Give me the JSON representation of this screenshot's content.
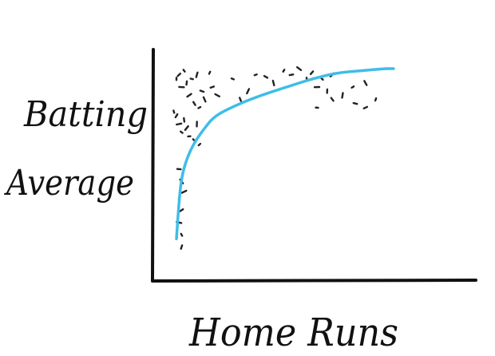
{
  "chart_data": {
    "type": "scatter",
    "title": "",
    "xlabel": "Home Runs",
    "ylabel_lines": [
      "Batting",
      "Average"
    ],
    "ylabel": "Batting Average",
    "axis_color": "#111111",
    "point_color": "#222222",
    "curve_color": "#3fbde8",
    "grid": false,
    "xlim": [
      0,
      100
    ],
    "ylim": [
      0,
      100
    ],
    "points": [
      {
        "x": 5,
        "y": 88
      },
      {
        "x": 6,
        "y": 90
      },
      {
        "x": 7,
        "y": 84
      },
      {
        "x": 8,
        "y": 92
      },
      {
        "x": 9,
        "y": 86
      },
      {
        "x": 10,
        "y": 80
      },
      {
        "x": 11,
        "y": 88
      },
      {
        "x": 12,
        "y": 76
      },
      {
        "x": 13,
        "y": 90
      },
      {
        "x": 14,
        "y": 74
      },
      {
        "x": 15,
        "y": 82
      },
      {
        "x": 16,
        "y": 78
      },
      {
        "x": 18,
        "y": 91
      },
      {
        "x": 19,
        "y": 84
      },
      {
        "x": 21,
        "y": 80
      },
      {
        "x": 4,
        "y": 72
      },
      {
        "x": 5,
        "y": 70
      },
      {
        "x": 6,
        "y": 66
      },
      {
        "x": 7,
        "y": 62
      },
      {
        "x": 8,
        "y": 68
      },
      {
        "x": 9,
        "y": 64
      },
      {
        "x": 10,
        "y": 60
      },
      {
        "x": 12,
        "y": 58
      },
      {
        "x": 13,
        "y": 66
      },
      {
        "x": 14,
        "y": 56
      },
      {
        "x": 6,
        "y": 44
      },
      {
        "x": 7,
        "y": 38
      },
      {
        "x": 6,
        "y": 30
      },
      {
        "x": 7,
        "y": 24
      },
      {
        "x": 6,
        "y": 18
      },
      {
        "x": 7,
        "y": 12
      },
      {
        "x": 7,
        "y": 6
      },
      {
        "x": 8,
        "y": 33
      },
      {
        "x": 27,
        "y": 88
      },
      {
        "x": 30,
        "y": 78
      },
      {
        "x": 33,
        "y": 82
      },
      {
        "x": 36,
        "y": 90
      },
      {
        "x": 40,
        "y": 89
      },
      {
        "x": 43,
        "y": 86
      },
      {
        "x": 47,
        "y": 92
      },
      {
        "x": 50,
        "y": 90
      },
      {
        "x": 53,
        "y": 93
      },
      {
        "x": 56,
        "y": 88
      },
      {
        "x": 58,
        "y": 91
      },
      {
        "x": 60,
        "y": 84
      },
      {
        "x": 62,
        "y": 88
      },
      {
        "x": 64,
        "y": 82
      },
      {
        "x": 66,
        "y": 90
      },
      {
        "x": 60,
        "y": 74
      },
      {
        "x": 66,
        "y": 78
      },
      {
        "x": 70,
        "y": 80
      },
      {
        "x": 74,
        "y": 84
      },
      {
        "x": 75,
        "y": 76
      },
      {
        "x": 79,
        "y": 86
      },
      {
        "x": 83,
        "y": 78
      },
      {
        "x": 79,
        "y": 74
      }
    ],
    "trend_curve": [
      {
        "x": 5,
        "y": 10
      },
      {
        "x": 6,
        "y": 28
      },
      {
        "x": 7,
        "y": 40
      },
      {
        "x": 9,
        "y": 49
      },
      {
        "x": 12,
        "y": 57
      },
      {
        "x": 16,
        "y": 64
      },
      {
        "x": 20,
        "y": 70
      },
      {
        "x": 28,
        "y": 75
      },
      {
        "x": 38,
        "y": 80
      },
      {
        "x": 48,
        "y": 84
      },
      {
        "x": 58,
        "y": 88
      },
      {
        "x": 68,
        "y": 91
      },
      {
        "x": 78,
        "y": 92
      },
      {
        "x": 86,
        "y": 93
      },
      {
        "x": 90,
        "y": 93
      }
    ]
  }
}
